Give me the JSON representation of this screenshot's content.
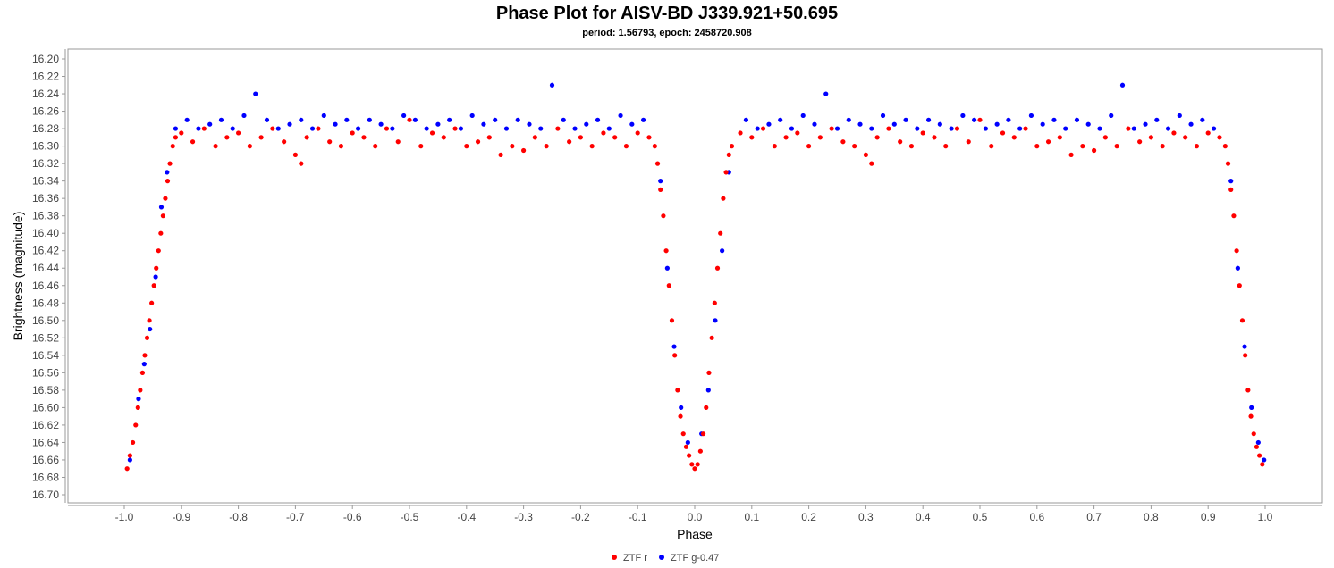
{
  "chart_data": {
    "type": "scatter",
    "title": "Phase Plot for AISV-BD J339.921+50.695",
    "subtitle": "period: 1.56793, epoch: 2458720.908",
    "xlabel": "Phase",
    "ylabel": "Brightness (magnitude)",
    "xlim": [
      -1.0,
      1.0
    ],
    "ylim": [
      16.2,
      16.7
    ],
    "y_inverted": true,
    "x_ticks": [
      "-1.0",
      "-0.9",
      "-0.8",
      "-0.7",
      "-0.6",
      "-0.5",
      "-0.4",
      "-0.3",
      "-0.2",
      "-0.1",
      "0.0",
      "0.1",
      "0.2",
      "0.3",
      "0.4",
      "0.5",
      "0.6",
      "0.7",
      "0.8",
      "0.9",
      "1.0"
    ],
    "x_tick_values": [
      -1.0,
      -0.9,
      -0.8,
      -0.7,
      -0.6,
      -0.5,
      -0.4,
      -0.3,
      -0.2,
      -0.1,
      0.0,
      0.1,
      0.2,
      0.3,
      0.4,
      0.5,
      0.6,
      0.7,
      0.8,
      0.9,
      1.0
    ],
    "y_ticks": [
      "16.20",
      "16.22",
      "16.24",
      "16.26",
      "16.28",
      "16.30",
      "16.32",
      "16.34",
      "16.36",
      "16.38",
      "16.40",
      "16.42",
      "16.44",
      "16.46",
      "16.48",
      "16.50",
      "16.52",
      "16.54",
      "16.56",
      "16.58",
      "16.60",
      "16.62",
      "16.64",
      "16.66",
      "16.68",
      "16.70"
    ],
    "y_tick_values": [
      16.2,
      16.22,
      16.24,
      16.26,
      16.28,
      16.3,
      16.32,
      16.34,
      16.36,
      16.38,
      16.4,
      16.42,
      16.44,
      16.46,
      16.48,
      16.5,
      16.52,
      16.54,
      16.56,
      16.58,
      16.6,
      16.62,
      16.64,
      16.66,
      16.68,
      16.7
    ],
    "grid": false,
    "legend_position": "bottom-center",
    "series": [
      {
        "name": "ZTF r",
        "color": "#ff0000",
        "points": [
          [
            -0.995,
            16.67
          ],
          [
            -0.99,
            16.655
          ],
          [
            -0.985,
            16.64
          ],
          [
            -0.98,
            16.62
          ],
          [
            -0.976,
            16.6
          ],
          [
            -0.972,
            16.58
          ],
          [
            -0.968,
            16.56
          ],
          [
            -0.964,
            16.54
          ],
          [
            -0.96,
            16.52
          ],
          [
            -0.956,
            16.5
          ],
          [
            -0.952,
            16.48
          ],
          [
            -0.948,
            16.46
          ],
          [
            -0.944,
            16.44
          ],
          [
            -0.94,
            16.42
          ],
          [
            -0.936,
            16.4
          ],
          [
            -0.932,
            16.38
          ],
          [
            -0.928,
            16.36
          ],
          [
            -0.924,
            16.34
          ],
          [
            -0.92,
            16.32
          ],
          [
            -0.915,
            16.3
          ],
          [
            -0.91,
            16.29
          ],
          [
            -0.9,
            16.285
          ],
          [
            -0.88,
            16.295
          ],
          [
            -0.86,
            16.28
          ],
          [
            -0.84,
            16.3
          ],
          [
            -0.82,
            16.29
          ],
          [
            -0.8,
            16.285
          ],
          [
            -0.78,
            16.3
          ],
          [
            -0.76,
            16.29
          ],
          [
            -0.74,
            16.28
          ],
          [
            -0.72,
            16.295
          ],
          [
            -0.7,
            16.31
          ],
          [
            -0.69,
            16.32
          ],
          [
            -0.68,
            16.29
          ],
          [
            -0.66,
            16.28
          ],
          [
            -0.64,
            16.295
          ],
          [
            -0.62,
            16.3
          ],
          [
            -0.6,
            16.285
          ],
          [
            -0.58,
            16.29
          ],
          [
            -0.56,
            16.3
          ],
          [
            -0.54,
            16.28
          ],
          [
            -0.52,
            16.295
          ],
          [
            -0.5,
            16.27
          ],
          [
            -0.48,
            16.3
          ],
          [
            -0.46,
            16.285
          ],
          [
            -0.44,
            16.29
          ],
          [
            -0.42,
            16.28
          ],
          [
            -0.4,
            16.3
          ],
          [
            -0.38,
            16.295
          ],
          [
            -0.36,
            16.29
          ],
          [
            -0.34,
            16.31
          ],
          [
            -0.32,
            16.3
          ],
          [
            -0.3,
            16.305
          ],
          [
            -0.28,
            16.29
          ],
          [
            -0.26,
            16.3
          ],
          [
            -0.24,
            16.28
          ],
          [
            -0.22,
            16.295
          ],
          [
            -0.2,
            16.29
          ],
          [
            -0.18,
            16.3
          ],
          [
            -0.16,
            16.285
          ],
          [
            -0.14,
            16.29
          ],
          [
            -0.12,
            16.3
          ],
          [
            -0.1,
            16.285
          ],
          [
            -0.08,
            16.29
          ],
          [
            -0.07,
            16.3
          ],
          [
            -0.065,
            16.32
          ],
          [
            -0.06,
            16.35
          ],
          [
            -0.055,
            16.38
          ],
          [
            -0.05,
            16.42
          ],
          [
            -0.045,
            16.46
          ],
          [
            -0.04,
            16.5
          ],
          [
            -0.035,
            16.54
          ],
          [
            -0.03,
            16.58
          ],
          [
            -0.025,
            16.61
          ],
          [
            -0.02,
            16.63
          ],
          [
            -0.015,
            16.645
          ],
          [
            -0.01,
            16.655
          ],
          [
            -0.005,
            16.665
          ],
          [
            0.0,
            16.67
          ],
          [
            0.005,
            16.665
          ],
          [
            0.01,
            16.65
          ],
          [
            0.015,
            16.63
          ],
          [
            0.02,
            16.6
          ],
          [
            0.025,
            16.56
          ],
          [
            0.03,
            16.52
          ],
          [
            0.035,
            16.48
          ],
          [
            0.04,
            16.44
          ],
          [
            0.045,
            16.4
          ],
          [
            0.05,
            16.36
          ],
          [
            0.055,
            16.33
          ],
          [
            0.06,
            16.31
          ],
          [
            0.065,
            16.3
          ],
          [
            0.08,
            16.285
          ],
          [
            0.1,
            16.29
          ],
          [
            0.12,
            16.28
          ],
          [
            0.14,
            16.3
          ],
          [
            0.16,
            16.29
          ],
          [
            0.18,
            16.285
          ],
          [
            0.2,
            16.3
          ],
          [
            0.22,
            16.29
          ],
          [
            0.24,
            16.28
          ],
          [
            0.26,
            16.295
          ],
          [
            0.28,
            16.3
          ],
          [
            0.3,
            16.31
          ],
          [
            0.31,
            16.32
          ],
          [
            0.32,
            16.29
          ],
          [
            0.34,
            16.28
          ],
          [
            0.36,
            16.295
          ],
          [
            0.38,
            16.3
          ],
          [
            0.4,
            16.285
          ],
          [
            0.42,
            16.29
          ],
          [
            0.44,
            16.3
          ],
          [
            0.46,
            16.28
          ],
          [
            0.48,
            16.295
          ],
          [
            0.5,
            16.27
          ],
          [
            0.52,
            16.3
          ],
          [
            0.54,
            16.285
          ],
          [
            0.56,
            16.29
          ],
          [
            0.58,
            16.28
          ],
          [
            0.6,
            16.3
          ],
          [
            0.62,
            16.295
          ],
          [
            0.64,
            16.29
          ],
          [
            0.66,
            16.31
          ],
          [
            0.68,
            16.3
          ],
          [
            0.7,
            16.305
          ],
          [
            0.72,
            16.29
          ],
          [
            0.74,
            16.3
          ],
          [
            0.76,
            16.28
          ],
          [
            0.78,
            16.295
          ],
          [
            0.8,
            16.29
          ],
          [
            0.82,
            16.3
          ],
          [
            0.84,
            16.285
          ],
          [
            0.86,
            16.29
          ],
          [
            0.88,
            16.3
          ],
          [
            0.9,
            16.285
          ],
          [
            0.92,
            16.29
          ],
          [
            0.93,
            16.3
          ],
          [
            0.935,
            16.32
          ],
          [
            0.94,
            16.35
          ],
          [
            0.945,
            16.38
          ],
          [
            0.95,
            16.42
          ],
          [
            0.955,
            16.46
          ],
          [
            0.96,
            16.5
          ],
          [
            0.965,
            16.54
          ],
          [
            0.97,
            16.58
          ],
          [
            0.975,
            16.61
          ],
          [
            0.98,
            16.63
          ],
          [
            0.985,
            16.645
          ],
          [
            0.99,
            16.655
          ],
          [
            0.995,
            16.665
          ]
        ]
      },
      {
        "name": "ZTF g-0.47",
        "color": "#0000ff",
        "points": [
          [
            -0.99,
            16.66
          ],
          [
            -0.975,
            16.59
          ],
          [
            -0.965,
            16.55
          ],
          [
            -0.955,
            16.51
          ],
          [
            -0.945,
            16.45
          ],
          [
            -0.935,
            16.37
          ],
          [
            -0.925,
            16.33
          ],
          [
            -0.91,
            16.28
          ],
          [
            -0.89,
            16.27
          ],
          [
            -0.87,
            16.28
          ],
          [
            -0.85,
            16.275
          ],
          [
            -0.83,
            16.27
          ],
          [
            -0.81,
            16.28
          ],
          [
            -0.79,
            16.265
          ],
          [
            -0.77,
            16.24
          ],
          [
            -0.75,
            16.27
          ],
          [
            -0.73,
            16.28
          ],
          [
            -0.71,
            16.275
          ],
          [
            -0.69,
            16.27
          ],
          [
            -0.67,
            16.28
          ],
          [
            -0.65,
            16.265
          ],
          [
            -0.63,
            16.275
          ],
          [
            -0.61,
            16.27
          ],
          [
            -0.59,
            16.28
          ],
          [
            -0.57,
            16.27
          ],
          [
            -0.55,
            16.275
          ],
          [
            -0.53,
            16.28
          ],
          [
            -0.51,
            16.265
          ],
          [
            -0.49,
            16.27
          ],
          [
            -0.47,
            16.28
          ],
          [
            -0.45,
            16.275
          ],
          [
            -0.43,
            16.27
          ],
          [
            -0.41,
            16.28
          ],
          [
            -0.39,
            16.265
          ],
          [
            -0.37,
            16.275
          ],
          [
            -0.35,
            16.27
          ],
          [
            -0.33,
            16.28
          ],
          [
            -0.31,
            16.27
          ],
          [
            -0.29,
            16.275
          ],
          [
            -0.27,
            16.28
          ],
          [
            -0.25,
            16.23
          ],
          [
            -0.23,
            16.27
          ],
          [
            -0.21,
            16.28
          ],
          [
            -0.19,
            16.275
          ],
          [
            -0.17,
            16.27
          ],
          [
            -0.15,
            16.28
          ],
          [
            -0.13,
            16.265
          ],
          [
            -0.11,
            16.275
          ],
          [
            -0.09,
            16.27
          ],
          [
            -0.06,
            16.34
          ],
          [
            -0.048,
            16.44
          ],
          [
            -0.036,
            16.53
          ],
          [
            -0.024,
            16.6
          ],
          [
            -0.012,
            16.64
          ],
          [
            0.012,
            16.63
          ],
          [
            0.024,
            16.58
          ],
          [
            0.036,
            16.5
          ],
          [
            0.048,
            16.42
          ],
          [
            0.06,
            16.33
          ],
          [
            0.09,
            16.27
          ],
          [
            0.11,
            16.28
          ],
          [
            0.13,
            16.275
          ],
          [
            0.15,
            16.27
          ],
          [
            0.17,
            16.28
          ],
          [
            0.19,
            16.265
          ],
          [
            0.21,
            16.275
          ],
          [
            0.23,
            16.24
          ],
          [
            0.25,
            16.28
          ],
          [
            0.27,
            16.27
          ],
          [
            0.29,
            16.275
          ],
          [
            0.31,
            16.28
          ],
          [
            0.33,
            16.265
          ],
          [
            0.35,
            16.275
          ],
          [
            0.37,
            16.27
          ],
          [
            0.39,
            16.28
          ],
          [
            0.41,
            16.27
          ],
          [
            0.43,
            16.275
          ],
          [
            0.45,
            16.28
          ],
          [
            0.47,
            16.265
          ],
          [
            0.49,
            16.27
          ],
          [
            0.51,
            16.28
          ],
          [
            0.53,
            16.275
          ],
          [
            0.55,
            16.27
          ],
          [
            0.57,
            16.28
          ],
          [
            0.59,
            16.265
          ],
          [
            0.61,
            16.275
          ],
          [
            0.63,
            16.27
          ],
          [
            0.65,
            16.28
          ],
          [
            0.67,
            16.27
          ],
          [
            0.69,
            16.275
          ],
          [
            0.71,
            16.28
          ],
          [
            0.73,
            16.265
          ],
          [
            0.75,
            16.23
          ],
          [
            0.77,
            16.28
          ],
          [
            0.79,
            16.275
          ],
          [
            0.81,
            16.27
          ],
          [
            0.83,
            16.28
          ],
          [
            0.85,
            16.265
          ],
          [
            0.87,
            16.275
          ],
          [
            0.89,
            16.27
          ],
          [
            0.91,
            16.28
          ],
          [
            0.94,
            16.34
          ],
          [
            0.952,
            16.44
          ],
          [
            0.964,
            16.53
          ],
          [
            0.976,
            16.6
          ],
          [
            0.988,
            16.64
          ],
          [
            0.998,
            16.66
          ]
        ]
      }
    ]
  }
}
